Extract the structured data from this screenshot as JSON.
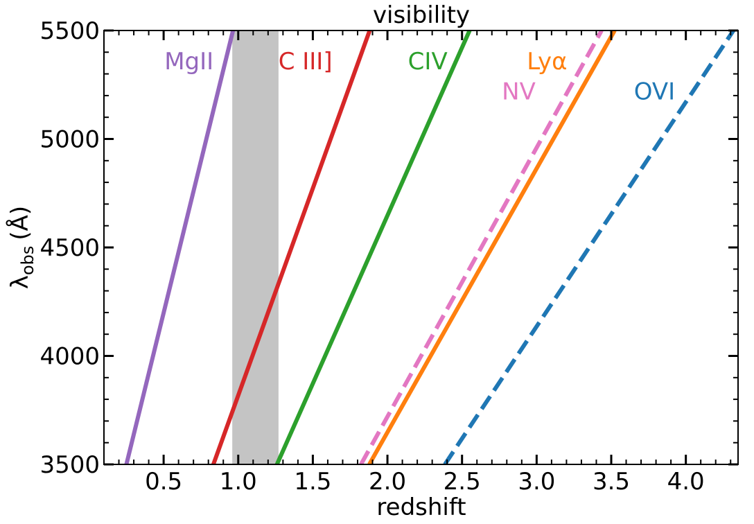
{
  "chart_data": {
    "type": "line",
    "title": "visibility",
    "xlabel": "redshift",
    "ylabel_main": "λ",
    "ylabel_sub": "obs",
    "ylabel_unit": "(Å)",
    "xlim": [
      0.1,
      4.35
    ],
    "ylim": [
      3500,
      5500
    ],
    "xticks": [
      0.5,
      1.0,
      1.5,
      2.0,
      2.5,
      3.0,
      3.5,
      4.0
    ],
    "xtick_labels": [
      "0.5",
      "1.0",
      "1.5",
      "2.0",
      "2.5",
      "3.0",
      "3.5",
      "4.0"
    ],
    "yticks": [
      3500,
      4000,
      4500,
      5000,
      5500
    ],
    "ytick_labels": [
      "3500",
      "4000",
      "4500",
      "5000",
      "5500"
    ],
    "shaded_band": {
      "x": [
        0.96,
        1.27
      ],
      "color": "#c4c4c4"
    },
    "series": [
      {
        "name": "MgII",
        "color": "#9467bd",
        "dashed": false,
        "rest_wavelength": 2799,
        "label_anchor": [
          0.67,
          5360
        ]
      },
      {
        "name": "C III]",
        "color": "#d62728",
        "dashed": false,
        "rest_wavelength": 1909,
        "label_anchor": [
          1.45,
          5360
        ]
      },
      {
        "name": "CIV",
        "color": "#2ca02c",
        "dashed": false,
        "rest_wavelength": 1549,
        "label_anchor": [
          2.27,
          5360
        ]
      },
      {
        "name": "Lyα",
        "color": "#ff7f0e",
        "dashed": false,
        "rest_wavelength": 1216,
        "label_anchor": [
          3.07,
          5360
        ]
      },
      {
        "name": "NV",
        "color": "#e377c2",
        "dashed": true,
        "rest_wavelength": 1240,
        "label_anchor": [
          2.88,
          5220
        ]
      },
      {
        "name": "OVI",
        "color": "#1f77b4",
        "dashed": true,
        "rest_wavelength": 1034,
        "label_anchor": [
          3.79,
          5220
        ]
      }
    ]
  }
}
